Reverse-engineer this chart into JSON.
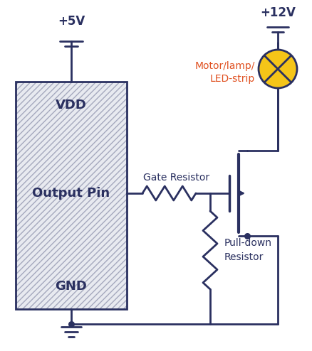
{
  "bg_color": "#ffffff",
  "lc": "#2a3060",
  "mc_fill": "#e8eaf0",
  "lamp_color": "#f5c518",
  "red_text": "#e05020",
  "vdd_label": "VDD",
  "gnd_label": "GND",
  "output_label": "Output Pin",
  "v5_label": "+5V",
  "v12_label": "+12V",
  "gate_res_label": "Gate Resistor",
  "pulldown_label": "Pull-down\nResistor",
  "motor_label": "Motor/lamp/\nLED-strip",
  "figw": 4.39,
  "figh": 4.94,
  "dpi": 100
}
